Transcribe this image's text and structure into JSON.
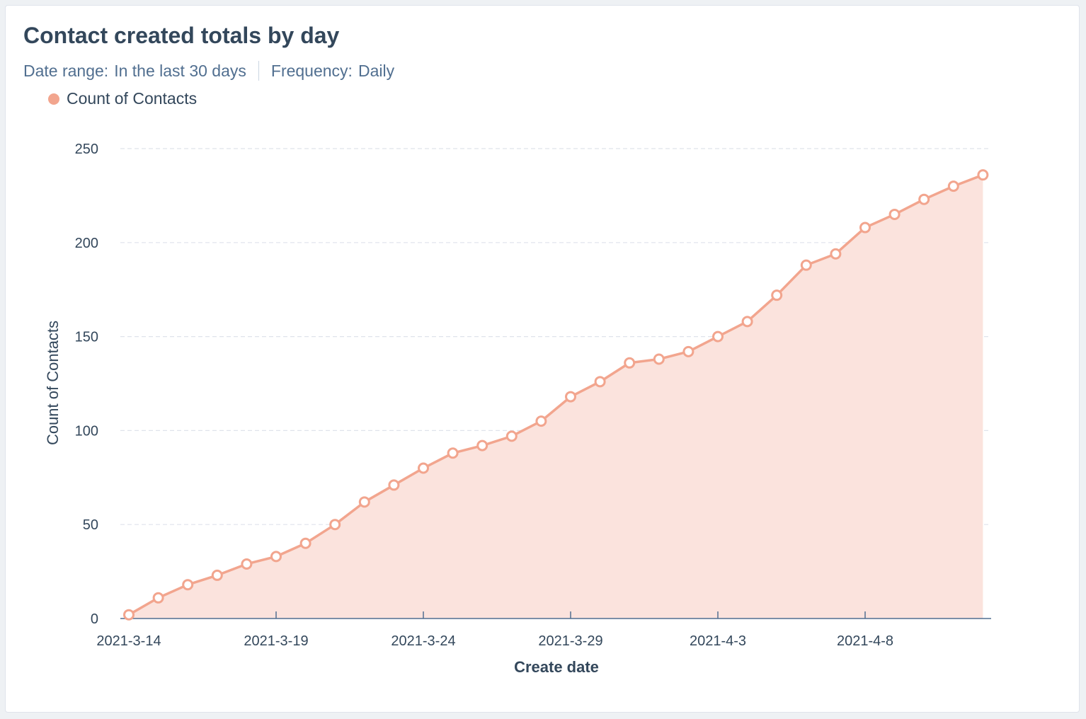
{
  "card": {
    "title": "Contact created totals by day",
    "date_range_label": "Date range:",
    "date_range_value": "In the last 30 days",
    "frequency_label": "Frequency:",
    "frequency_value": "Daily"
  },
  "chart_data": {
    "type": "area",
    "title": "Contact created totals by day",
    "xlabel": "Create date",
    "ylabel": "Count of Contacts",
    "ylim": [
      0,
      250
    ],
    "yticks": [
      0,
      50,
      100,
      150,
      200,
      250
    ],
    "xtick_labels": [
      "2021-3-14",
      "2021-3-19",
      "2021-3-24",
      "2021-3-29",
      "2021-4-3",
      "2021-4-8"
    ],
    "grid": true,
    "legend_position": "top-left",
    "x": [
      "2021-3-14",
      "2021-3-15",
      "2021-3-16",
      "2021-3-17",
      "2021-3-18",
      "2021-3-19",
      "2021-3-20",
      "2021-3-21",
      "2021-3-22",
      "2021-3-23",
      "2021-3-24",
      "2021-3-25",
      "2021-3-26",
      "2021-3-27",
      "2021-3-28",
      "2021-3-29",
      "2021-3-30",
      "2021-3-31",
      "2021-4-1",
      "2021-4-2",
      "2021-4-3",
      "2021-4-4",
      "2021-4-5",
      "2021-4-6",
      "2021-4-7",
      "2021-4-8",
      "2021-4-9",
      "2021-4-10",
      "2021-4-11",
      "2021-4-12"
    ],
    "series": [
      {
        "name": "Count of Contacts",
        "color": "#f2a58e",
        "fill": "#fbe3dd",
        "values": [
          2,
          11,
          18,
          23,
          29,
          33,
          40,
          50,
          62,
          71,
          80,
          88,
          92,
          97,
          105,
          118,
          126,
          136,
          138,
          142,
          150,
          158,
          172,
          188,
          194,
          208,
          215,
          223,
          230,
          236
        ]
      }
    ]
  }
}
